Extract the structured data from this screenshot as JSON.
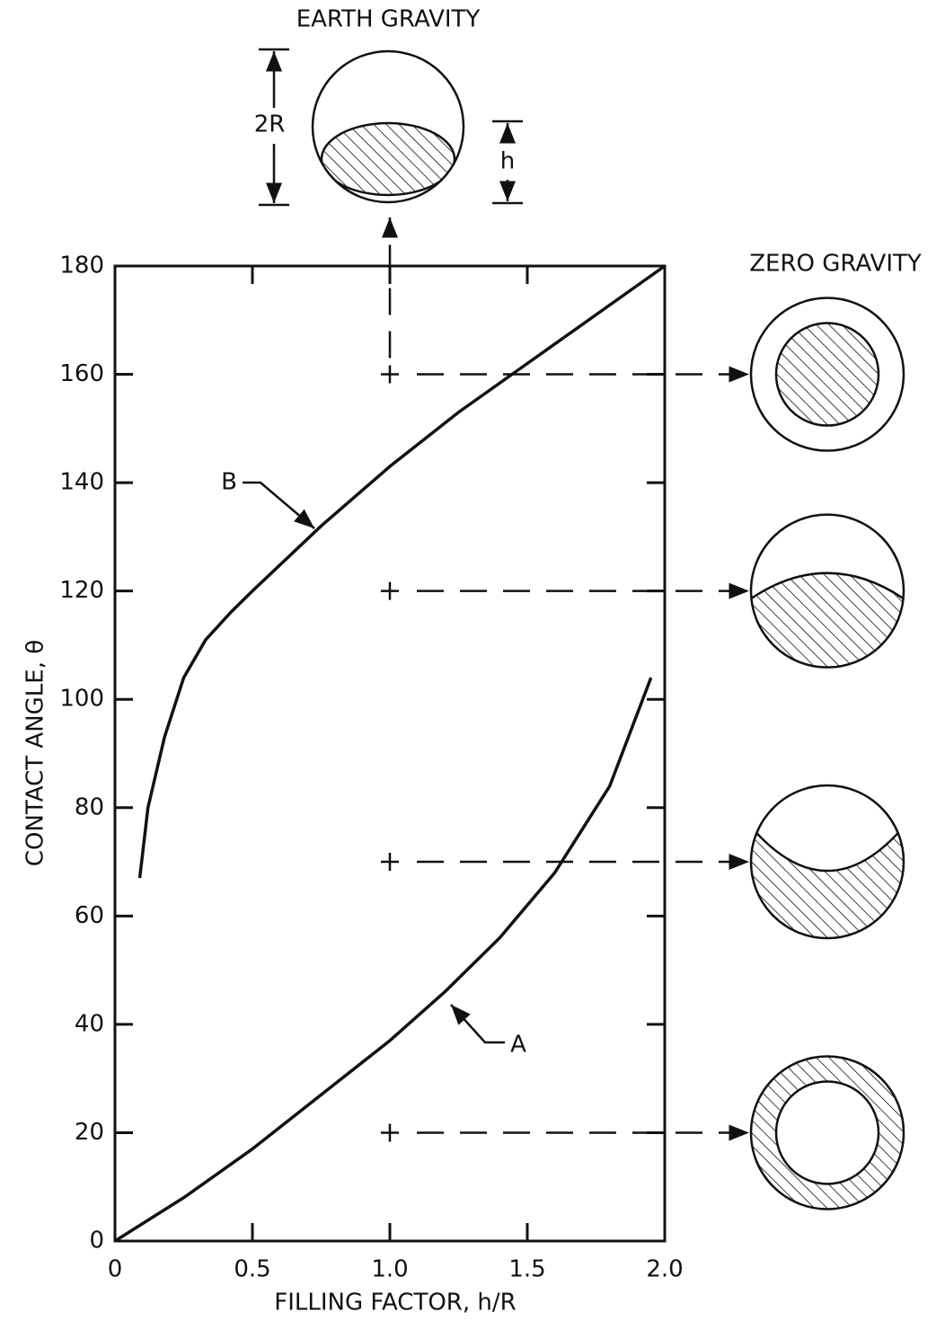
{
  "chart_data": {
    "type": "line",
    "earth_label": "EARTH GRAVITY",
    "zero_label": "ZERO GRAVITY",
    "dim_2r": "2R",
    "dim_h": "h",
    "xlabel": "FILLING FACTOR, h/R",
    "ylabel": "CONTACT ANGLE, θ",
    "xlim": [
      0,
      2.0
    ],
    "ylim": [
      0,
      180
    ],
    "xticks": [
      0,
      0.5,
      {
        "value": 1.0,
        "label": "1.0"
      },
      1.5,
      {
        "value": 2.0,
        "label": "2.0"
      }
    ],
    "yticks": [
      0,
      20,
      40,
      60,
      80,
      100,
      120,
      140,
      160,
      180
    ],
    "series": [
      {
        "name": "A",
        "color": "#111111",
        "x": [
          0,
          0.25,
          0.5,
          0.75,
          1.0,
          1.2,
          1.4,
          1.6,
          1.8,
          1.95
        ],
        "values": [
          0,
          8,
          17,
          27,
          37,
          46,
          56,
          68,
          84,
          104
        ]
      },
      {
        "name": "B",
        "color": "#111111",
        "x": [
          0.09,
          0.12,
          0.18,
          0.25,
          0.33,
          0.42,
          0.5,
          0.75,
          1.0,
          1.25,
          1.5,
          1.75,
          2.0
        ],
        "values": [
          67,
          80,
          93,
          104,
          111,
          116,
          120,
          132,
          143,
          153,
          162,
          171,
          180
        ]
      }
    ],
    "points": {
      "x": [
        1.0,
        1.0,
        1.0,
        1.0
      ],
      "values": [
        160,
        120,
        70,
        20
      ]
    }
  }
}
